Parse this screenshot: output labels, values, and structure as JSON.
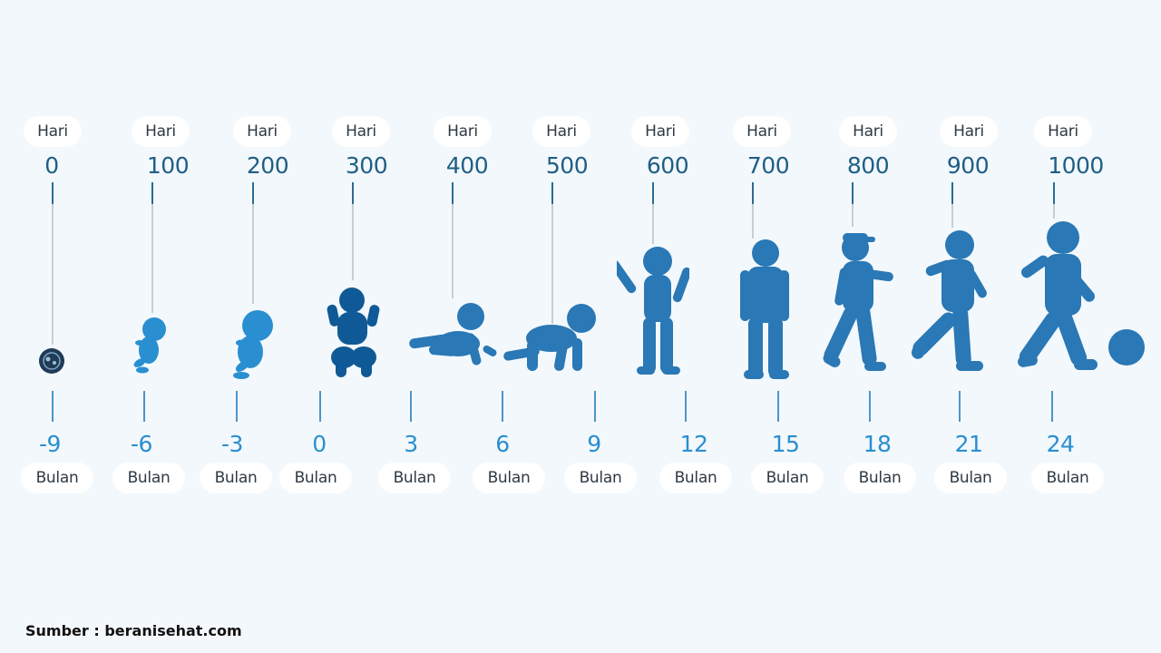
{
  "hari_label": "Hari",
  "bulan_label": "Bulan",
  "stages": [
    {
      "hari": "0",
      "bulan": "-9",
      "icon": "embryo-icon",
      "color": "#1f3b55"
    },
    {
      "hari": "100",
      "bulan": "-6",
      "icon": "fetus-icon",
      "color": "#2a8fd0"
    },
    {
      "hari": "200",
      "bulan": "-3",
      "icon": "fetus-icon",
      "color": "#2a8fd0"
    },
    {
      "hari": "300",
      "bulan": "0",
      "icon": "newborn-icon",
      "color": "#0f5a96"
    },
    {
      "hari": "400",
      "bulan": "3",
      "icon": "baby-lying-icon",
      "color": "#2a78b5"
    },
    {
      "hari": "500",
      "bulan": "6",
      "icon": "baby-crawling-icon",
      "color": "#2a78b5"
    },
    {
      "hari": "600",
      "bulan": "9",
      "icon": "baby-standing-icon",
      "color": "#2a78b5"
    },
    {
      "hari": "700",
      "bulan": "12",
      "icon": "toddler-standing-icon",
      "color": "#2a78b5"
    },
    {
      "hari": "800",
      "bulan": "15",
      "icon": "toddler-walking-icon",
      "color": "#2a78b5"
    },
    {
      "hari": "900",
      "bulan": "18",
      "icon": "toddler-walking-icon",
      "color": "#2a78b5"
    },
    {
      "hari": "1000",
      "bulan": "21",
      "icon": "child-walking-icon",
      "color": "#2a78b5"
    },
    {
      "hari": "",
      "bulan": "24",
      "icon": "child-kicking-ball-icon",
      "color": "#2a78b5"
    }
  ],
  "source": "Sumber : beranisehat.com"
}
